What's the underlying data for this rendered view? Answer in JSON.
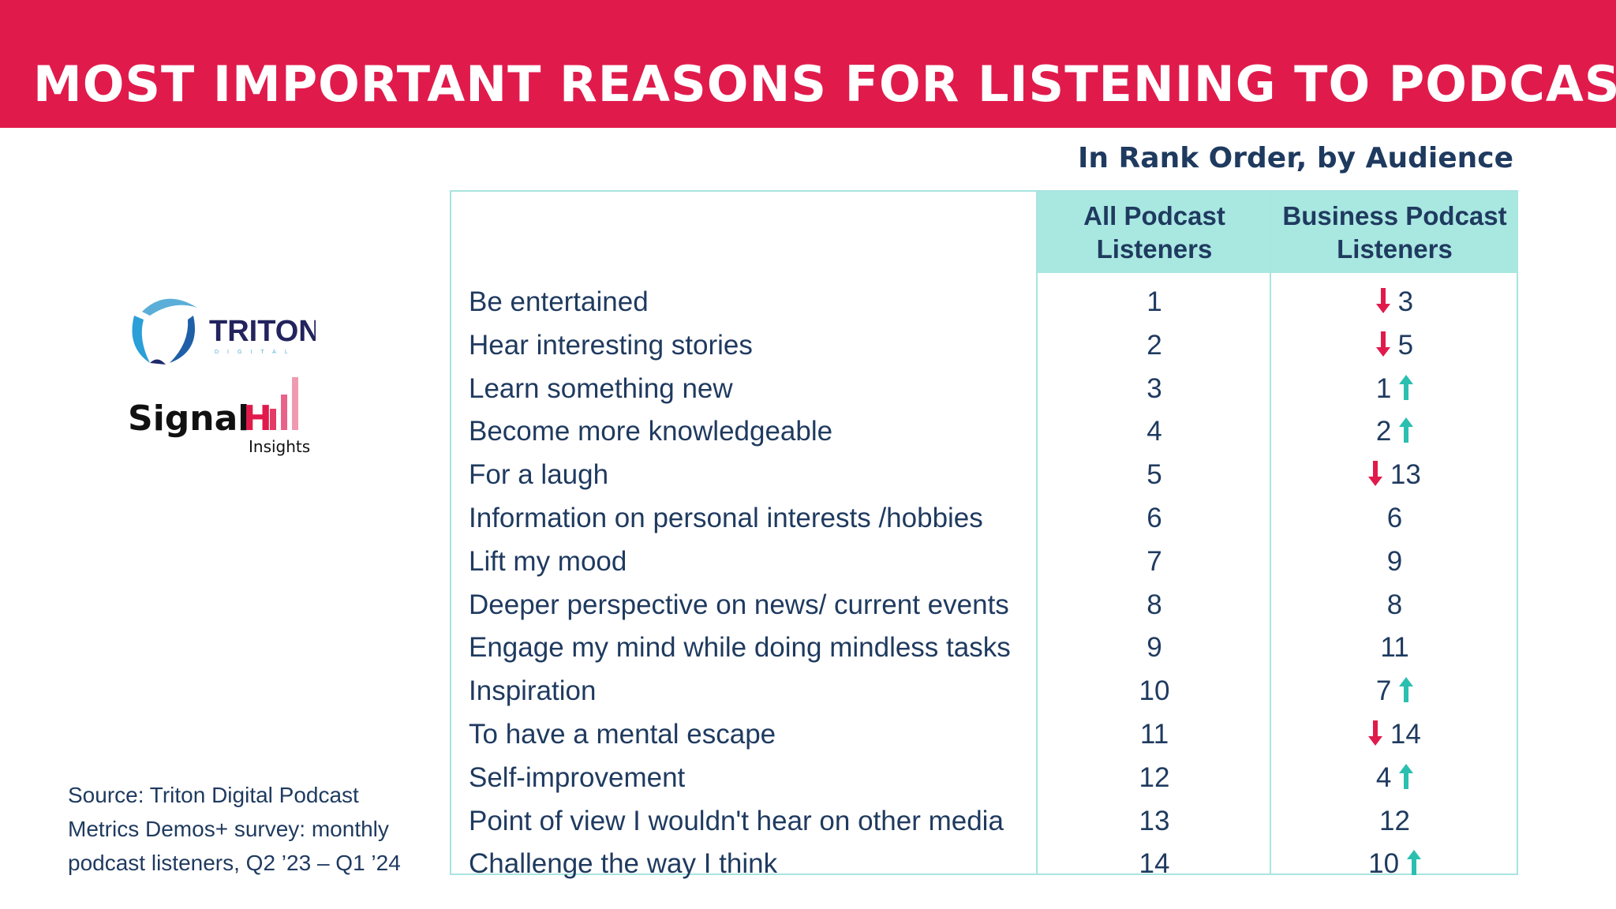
{
  "title": "MOST IMPORTANT REASONS FOR LISTENING TO PODCASTS",
  "subtitle": "In Rank Order, by Audience",
  "columns": [
    "All Podcast Listeners",
    "Business Podcast Listeners"
  ],
  "colors": {
    "banner": "#e01b4c",
    "header_fill": "#a9e7e1",
    "up_arrow": "#2bbfb0",
    "down_arrow": "#e01b4c",
    "text": "#1f3a5f"
  },
  "rows": [
    {
      "reason": "Be entertained",
      "all": "1",
      "business": "3",
      "change": "down"
    },
    {
      "reason": "Hear interesting stories",
      "all": "2",
      "business": "5",
      "change": "down"
    },
    {
      "reason": "Learn something new",
      "all": "3",
      "business": "1",
      "change": "up"
    },
    {
      "reason": "Become more knowledgeable",
      "all": "4",
      "business": "2",
      "change": "up"
    },
    {
      "reason": "For a laugh",
      "all": "5",
      "business": "13",
      "change": "down"
    },
    {
      "reason": "Information on personal interests /hobbies",
      "all": "6",
      "business": "6",
      "change": "none"
    },
    {
      "reason": "Lift my mood",
      "all": "7",
      "business": "9",
      "change": "none"
    },
    {
      "reason": "Deeper perspective on news/ current events",
      "all": "8",
      "business": "8",
      "change": "none"
    },
    {
      "reason": "Engage my mind while doing mindless tasks",
      "all": "9",
      "business": "11",
      "change": "none"
    },
    {
      "reason": "Inspiration",
      "all": "10",
      "business": "7",
      "change": "up"
    },
    {
      "reason": "To have a mental escape",
      "all": "11",
      "business": "14",
      "change": "down"
    },
    {
      "reason": "Self-improvement",
      "all": "12",
      "business": "4",
      "change": "up"
    },
    {
      "reason": "Point of view I wouldn't hear on other media",
      "all": "13",
      "business": "12",
      "change": "none"
    },
    {
      "reason": "Challenge the way I think",
      "all": "14",
      "business": "10",
      "change": "up"
    }
  ],
  "logos": {
    "triton": "TRITON DIGITAL",
    "signalhill": "SignalHill Insights"
  },
  "source": [
    "Source: Triton Digital Podcast",
    "Metrics Demos+ survey:  monthly",
    "podcast listeners, Q2 ’23 – Q1 ’24"
  ]
}
